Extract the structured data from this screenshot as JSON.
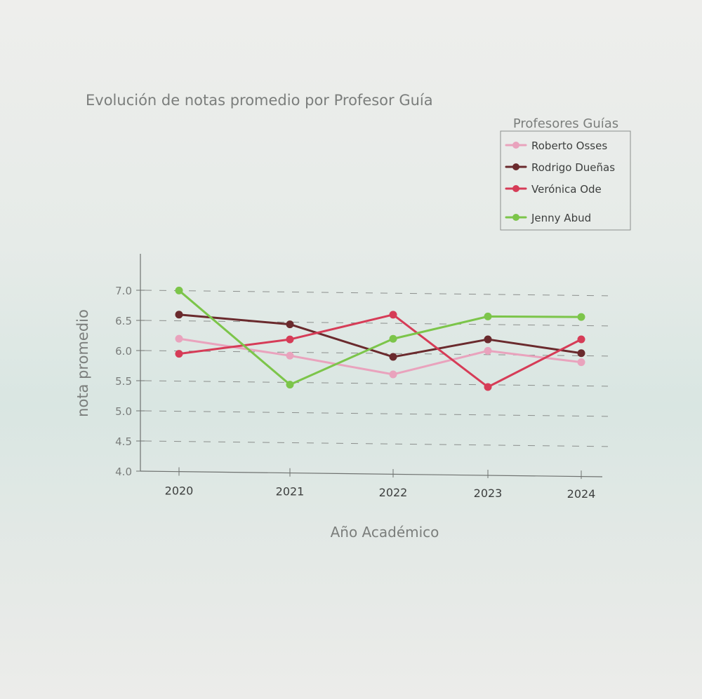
{
  "chart_data": {
    "type": "line",
    "title": "Evolución de notas promedio por Profesor Guía",
    "xlabel": "Año Académico",
    "ylabel": "nota promedio",
    "categories": [
      "2020",
      "2021",
      "2022",
      "2023",
      "2024"
    ],
    "yticks": [
      "4.0",
      "4.5",
      "5.0",
      "5.5",
      "6.0",
      "6.5",
      "7.0"
    ],
    "ylim": [
      4.0,
      7.0
    ],
    "grid": "dashed horizontal",
    "legend": {
      "title": "Profesores Guías",
      "placement": "top-right"
    },
    "series": [
      {
        "name": "Roberto Osses",
        "color": "#e9a3bd",
        "values": [
          6.2,
          5.93,
          5.63,
          6.03,
          5.85
        ]
      },
      {
        "name": "Rodrigo Dueñas",
        "color": "#6a2a2d",
        "values": [
          6.6,
          6.45,
          5.92,
          6.22,
          6.0
        ]
      },
      {
        "name": "Verónica Ode",
        "color": "#d63c57",
        "values": [
          5.95,
          6.2,
          6.62,
          5.43,
          6.23
        ]
      },
      {
        "name": "Jenny Abud",
        "color": "#7cc54a",
        "values": [
          7.0,
          5.45,
          6.22,
          6.6,
          6.6
        ]
      }
    ]
  }
}
